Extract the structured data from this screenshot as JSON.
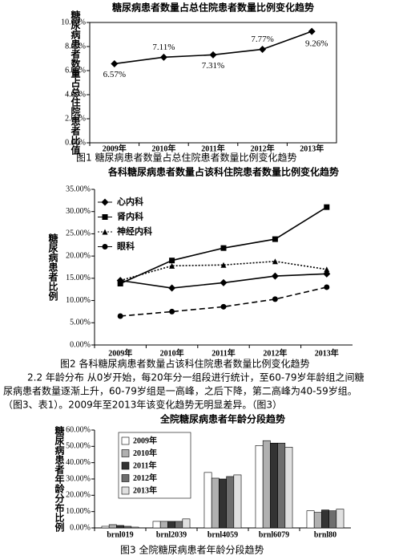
{
  "chart_data": [
    {
      "type": "line",
      "title": "糖尿病患者数量占总住院患者数量比例变化趋势",
      "y_label": "糖尿病患者数量占总住院患者比值",
      "categories": [
        "2009年",
        "2010年",
        "2011年",
        "2012年",
        "2013年"
      ],
      "values": [
        6.57,
        7.11,
        7.31,
        7.77,
        9.26
      ],
      "value_labels": [
        "6.57%",
        "7.11%",
        "7.31%",
        "7.77%",
        "9.26%"
      ],
      "color": "#000000",
      "ylim": [
        0,
        10
      ],
      "yticks": [
        {
          "value": 0,
          "label": "0.00%"
        },
        {
          "value": 2,
          "label": "2.00%"
        },
        {
          "value": 4,
          "label": "4.00%"
        },
        {
          "value": 6,
          "label": "6.00%"
        },
        {
          "value": 8,
          "label": "8.00%"
        },
        {
          "value": 10,
          "label": "10.00%"
        }
      ]
    },
    {
      "type": "line",
      "title": "各科糖尿病患者数量占该科住院患者数量比例变化趋势",
      "y_label": "糖尿病患者比例",
      "categories": [
        "2009年",
        "2010年",
        "2011年",
        "2012年",
        "2013年"
      ],
      "series": [
        {
          "name": "心内科",
          "color": "#000000",
          "marker": "diamond",
          "dash": "solid",
          "values": [
            14.5,
            12.8,
            14.0,
            15.5,
            16.0
          ]
        },
        {
          "name": "肾内科",
          "color": "#000000",
          "marker": "square",
          "dash": "solid",
          "values": [
            13.8,
            19.0,
            21.8,
            23.8,
            31.0
          ]
        },
        {
          "name": "神经内科",
          "color": "#000000",
          "marker": "triangle",
          "dash": "dotted",
          "values": [
            14.5,
            17.8,
            18.0,
            18.8,
            17.0
          ]
        },
        {
          "name": "眼科",
          "color": "#000000",
          "marker": "circle",
          "dash": "dashed",
          "values": [
            6.5,
            7.5,
            8.6,
            10.3,
            13.0
          ]
        }
      ],
      "legend": "upper-left",
      "ylim": [
        0,
        35
      ],
      "yticks": [
        {
          "value": 0,
          "label": "0.00%"
        },
        {
          "value": 5,
          "label": "5.00%"
        },
        {
          "value": 10,
          "label": "10.00%"
        },
        {
          "value": 15,
          "label": "15.00%"
        },
        {
          "value": 20,
          "label": "20.00%"
        },
        {
          "value": 25,
          "label": "25.00%"
        },
        {
          "value": 30,
          "label": "30.00%"
        },
        {
          "value": 35,
          "label": "35.00%"
        }
      ]
    },
    {
      "type": "bar",
      "title": "全院糖尿病患者年龄分段趋势",
      "y_label": "糖尿病患者年龄分布比例",
      "categories": [
        "brnl019",
        "brnl2039",
        "brnl4059",
        "brnl6079",
        "brnl80"
      ],
      "series": [
        {
          "name": "2009年",
          "color": "#ffffff",
          "values": [
            1.0,
            4.0,
            34.0,
            50.5,
            10.5
          ]
        },
        {
          "name": "2010年",
          "color": "#b0b0b0",
          "values": [
            2.0,
            4.0,
            30.5,
            53.5,
            9.5
          ]
        },
        {
          "name": "2011年",
          "color": "#333333",
          "values": [
            1.5,
            4.0,
            30.0,
            52.0,
            11.0
          ]
        },
        {
          "name": "2012年",
          "color": "#6e6e6e",
          "values": [
            1.0,
            4.0,
            31.5,
            52.0,
            10.5
          ]
        },
        {
          "name": "2013年",
          "color": "#e0e0e0",
          "values": [
            0.5,
            5.5,
            32.5,
            49.5,
            11.5
          ]
        }
      ],
      "legend": "upper-left",
      "ylim": [
        0,
        60
      ],
      "yticks": [
        {
          "value": 0,
          "label": "0.00%"
        },
        {
          "value": 10,
          "label": "10.00%"
        },
        {
          "value": 20,
          "label": "20.00%"
        },
        {
          "value": 30,
          "label": "30.00%"
        },
        {
          "value": 40,
          "label": "40.00%"
        },
        {
          "value": 50,
          "label": "50.00%"
        },
        {
          "value": 60,
          "label": "60.00%"
        }
      ]
    }
  ],
  "document": {
    "captions": [
      "图1  糖尿病患者数量占总住院患者数量比例变化趋势",
      "图2  各科糖尿病患者数量占该科住院患者数量比例变化趋势",
      "图3  全院糖尿病患者年龄分段趋势"
    ],
    "paragraph": [
      "2.2 年龄分布 从0岁开始，每20年分一组段进行统计，至60-79岁年龄组之间糖",
      "尿病患者数量逐渐上升，60-79岁组是一高峰，之后下降，第二高峰为40-59岁组。",
      "（图3、表1）。2009年至2013年该变化趋势无明显差异。（图3）"
    ]
  }
}
